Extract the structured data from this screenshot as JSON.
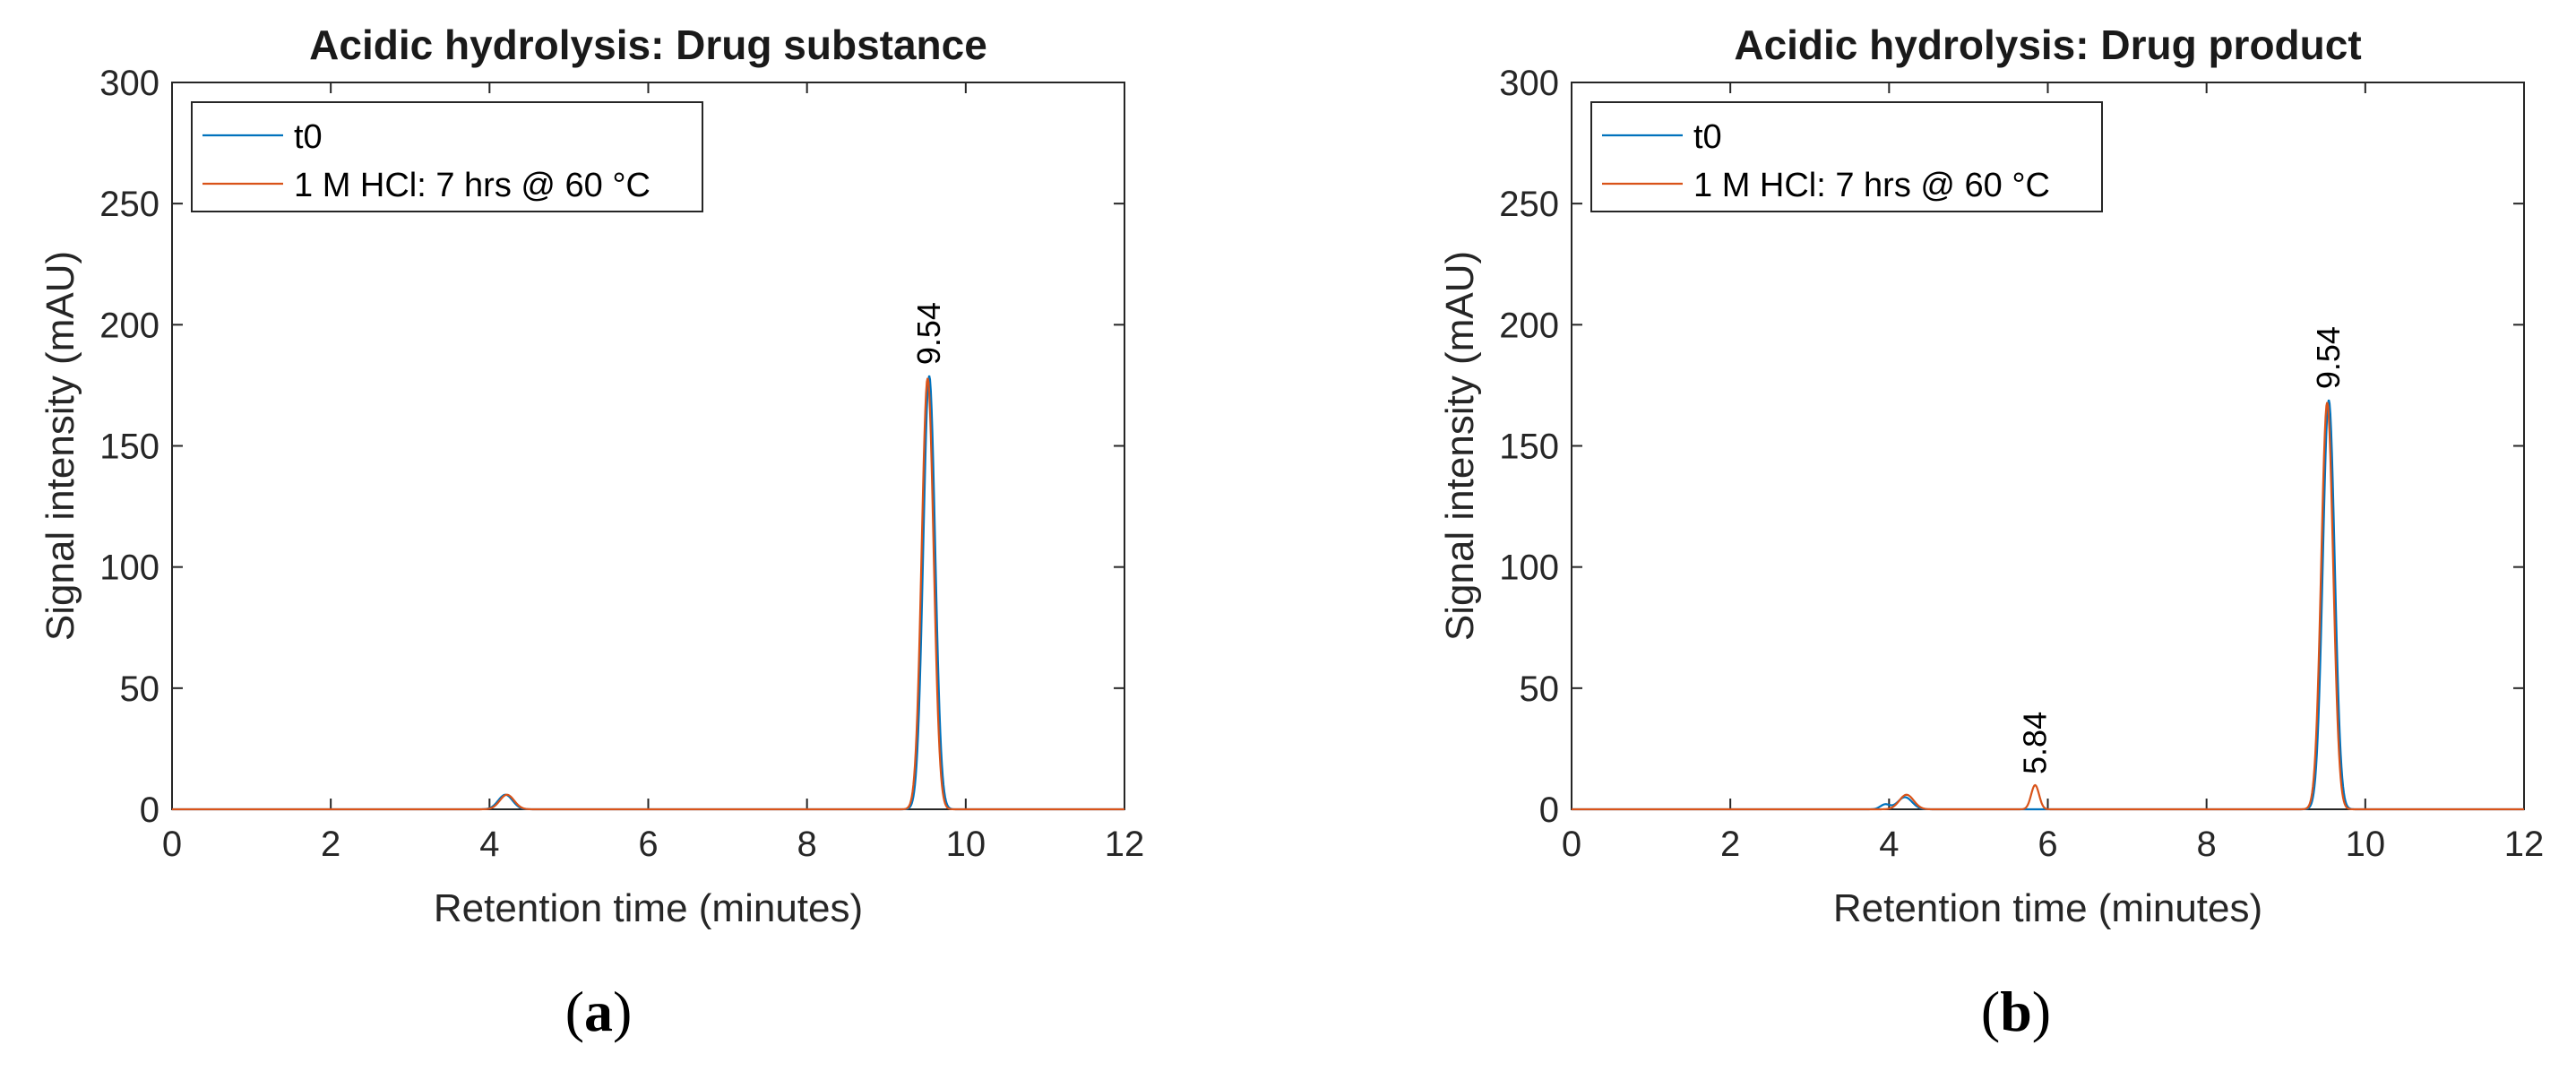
{
  "colors": {
    "t0": "#0072BD",
    "treated": "#D95319",
    "axis": "#262626"
  },
  "chart_data": [
    {
      "type": "line",
      "panel_label": "a",
      "title": "Acidic hydrolysis: Drug substance",
      "xlabel": "Retention time (minutes)",
      "ylabel": "Signal intensity (mAU)",
      "xlim": [
        0,
        12
      ],
      "ylim": [
        0,
        300
      ],
      "xticks": [
        0,
        2,
        4,
        6,
        8,
        10,
        12
      ],
      "yticks": [
        0,
        50,
        100,
        150,
        200,
        250,
        300
      ],
      "legend_position": "top-left",
      "grid": false,
      "series": [
        {
          "name": "t0",
          "color": "#0072BD",
          "peaks": [
            {
              "rt": 4.2,
              "height": 6,
              "width": 0.09
            },
            {
              "rt": 9.54,
              "height": 179,
              "width": 0.075
            }
          ]
        },
        {
          "name": "1 M HCl: 7 hrs @ 60 °C",
          "color": "#D95319",
          "peaks": [
            {
              "rt": 4.22,
              "height": 6,
              "width": 0.09
            },
            {
              "rt": 9.52,
              "height": 178,
              "width": 0.075
            }
          ]
        }
      ],
      "annotations": [
        {
          "text": "9.54",
          "x": 9.54,
          "y": 179
        }
      ]
    },
    {
      "type": "line",
      "panel_label": "b",
      "title": "Acidic hydrolysis: Drug product",
      "xlabel": "Retention time (minutes)",
      "ylabel": "Signal intensity (mAU)",
      "xlim": [
        0,
        12
      ],
      "ylim": [
        0,
        300
      ],
      "xticks": [
        0,
        2,
        4,
        6,
        8,
        10,
        12
      ],
      "yticks": [
        0,
        50,
        100,
        150,
        200,
        250,
        300
      ],
      "legend_position": "top-left",
      "grid": false,
      "series": [
        {
          "name": "t0",
          "color": "#0072BD",
          "peaks": [
            {
              "rt": 3.95,
              "height": 2,
              "width": 0.06
            },
            {
              "rt": 4.2,
              "height": 5,
              "width": 0.09
            },
            {
              "rt": 9.54,
              "height": 169,
              "width": 0.075
            }
          ]
        },
        {
          "name": "1 M HCl: 7 hrs @ 60 °C",
          "color": "#D95319",
          "peaks": [
            {
              "rt": 4.22,
              "height": 6,
              "width": 0.09
            },
            {
              "rt": 5.84,
              "height": 10,
              "width": 0.05
            },
            {
              "rt": 9.52,
              "height": 168,
              "width": 0.075
            }
          ]
        }
      ],
      "annotations": [
        {
          "text": "5.84",
          "x": 5.84,
          "y": 10
        },
        {
          "text": "9.54",
          "x": 9.54,
          "y": 169
        }
      ]
    }
  ]
}
